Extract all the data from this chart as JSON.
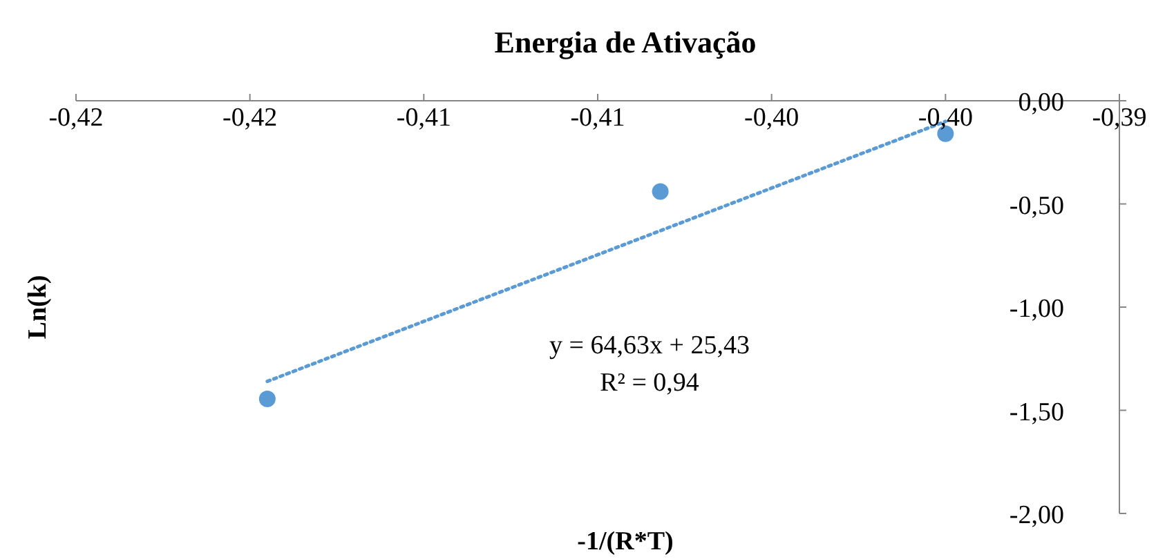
{
  "chart_data": {
    "type": "scatter",
    "title": "Energia de Ativação",
    "xlabel": "-1/(R*T)",
    "ylabel": "Ln(k)",
    "xlim": [
      -0.42,
      -0.39
    ],
    "xticks": [
      {
        "value": -0.42,
        "label": "-0,42"
      },
      {
        "value": -0.415,
        "label": "-0,42"
      },
      {
        "value": -0.41,
        "label": "-0,41"
      },
      {
        "value": -0.405,
        "label": "-0,41"
      },
      {
        "value": -0.4,
        "label": "-0,40"
      },
      {
        "value": -0.395,
        "label": "-0,40"
      },
      {
        "value": -0.39,
        "label": "-0,39"
      }
    ],
    "ylim": [
      -2,
      0
    ],
    "yticks": [
      {
        "value": 0,
        "label": "0,00"
      },
      {
        "value": -0.5,
        "label": "-0,50"
      },
      {
        "value": -1,
        "label": "-1,00"
      },
      {
        "value": -1.5,
        "label": "-1,50"
      },
      {
        "value": -2,
        "label": "-2,00"
      }
    ],
    "grid": false,
    "marker": "circle",
    "series": [
      {
        "color": "#5b9bd5",
        "x": [
          -0.4145,
          -0.4032,
          -0.395
        ],
        "values": [
          -1.445,
          -0.44,
          -0.16
        ]
      },
      {
        "type": "line",
        "color": "#5b9bd5",
        "line_style": "dotted",
        "marker": "none",
        "x": [
          -0.4145,
          -0.395
        ],
        "values": [
          -1.36,
          -0.1
        ]
      }
    ],
    "annotations": [
      "y = 64,63x  + 25,43",
      "R² = 0,94"
    ]
  }
}
